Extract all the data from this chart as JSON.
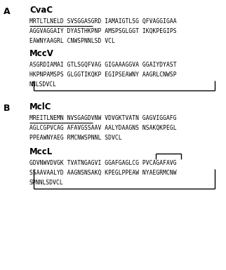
{
  "title_A": "A",
  "title_B": "B",
  "section_A1_title": "CvaC",
  "section_A1_lines": [
    "MRTLTLNELD SVSGGASGRD IAMAIGTLSG QFVAGGIGAA",
    "AGGVAGGAIY DYASTHKPNP AMSPSGLGGT IKQKPEGIPS",
    "EAWNYAAGRL CNWSPNNLSD VCL"
  ],
  "section_A2_title": "MccV",
  "section_A2_lines": [
    "ASGRDIAMAI GTLSGQFVAG GIGAAAGGVA GGAIYDYAST",
    "HKPNPAMSPS GLGGTIKQKP EGIPSEAWNY AAGRLCNWSP",
    "NNLSDVCL"
  ],
  "section_B1_title": "MclC",
  "section_B1_lines": [
    "MREITLNEMN NVSGAGDVNW VDVGKTVATN GAGVIGGAFG",
    "AGLCGPVCAG AFAVGSSAAV AALYDAAGNS NSAKQKPEGL",
    "PPEAWNYAEG RMCNWSPNNL SDVCL"
  ],
  "section_B2_title": "MccL",
  "section_B2_lines": [
    "GDVNWVDVGK TVATNGAGVI GGAFGAGLCG PVCAGAFAVG",
    "SSAAVAALYD AAGNSNSAKQ KPEGLPPEAW NYAEGRMCNW",
    "SPNNLSDVCL"
  ],
  "font_mono": "DejaVu Sans Mono",
  "font_bold": "DejaVu Sans",
  "seq_fontsize": 5.8,
  "title_fontsize": 8.5,
  "label_fontsize": 9.0,
  "bg_color": "#ffffff",
  "text_color": "#000000",
  "line_color": "#000000",
  "underline_A1_chars": 15,
  "underline_B1_chars": 15
}
